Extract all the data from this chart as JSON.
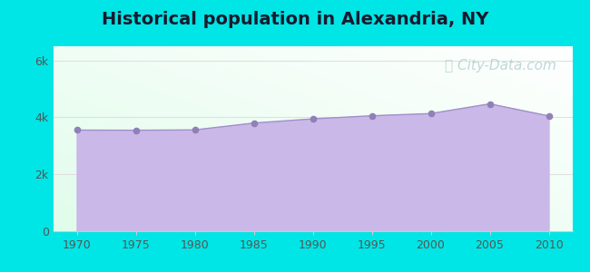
{
  "title": "Historical population in Alexandria, NY",
  "title_fontsize": 14,
  "title_fontweight": "bold",
  "title_color": "#1a1a2e",
  "years": [
    1970,
    1975,
    1980,
    1985,
    1990,
    1995,
    2000,
    2005,
    2010
  ],
  "population": [
    3554,
    3548,
    3561,
    3801,
    3948,
    4057,
    4135,
    4476,
    4052
  ],
  "fill_color": "#c9b8e8",
  "line_color": "#a090c8",
  "marker_color": "#9080b8",
  "marker_size": 4.5,
  "ylim": [
    0,
    6500
  ],
  "xlim": [
    1968,
    2012
  ],
  "yticks": [
    0,
    2000,
    4000,
    6000
  ],
  "ytick_labels": [
    "0",
    "2k",
    "4k",
    "6k"
  ],
  "xticks": [
    1970,
    1975,
    1980,
    1985,
    1990,
    1995,
    2000,
    2005,
    2010
  ],
  "bg_outer": "#00e5e5",
  "grid_color": "#e0e0e0",
  "watermark_text": "City-Data.com",
  "watermark_color": "#aacccc",
  "watermark_fontsize": 11,
  "axis_tick_color": "#555555",
  "axis_tick_fontsize": 9
}
